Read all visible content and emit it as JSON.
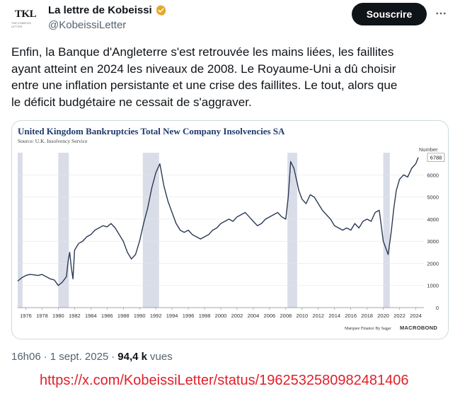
{
  "author": {
    "avatar_text": "TKL",
    "avatar_sub": "THE KOBEISSI LETTER",
    "display_name": "La lettre de Kobeissi",
    "handle": "@KobeissiLetter",
    "verified_icon": "verified-badge-icon",
    "verified_color": "#e2a829"
  },
  "actions": {
    "subscribe_label": "Souscrire",
    "more_icon": "more-options-icon"
  },
  "tweet": {
    "text": "Enfin, la Banque d'Angleterre s'est retrouvée les mains liées, les faillites\nayant atteint en 2024 les niveaux de 2008. Le Royaume-Uni a dû choisir\nentre une inflation persistante et une crise des faillites. Le tout, alors que\nle déficit budgétaire ne cessait de s'aggraver."
  },
  "meta": {
    "time": "16h06",
    "date": "1 sept. 2025",
    "views_count": "94,4 k",
    "views_label": "vues"
  },
  "source_url": "https://x.com/KobeissiLetter/status/1962532580982481406",
  "chart_data": {
    "type": "line",
    "title": "United Kingdom Bankruptcies Total New Company Insolvencies SA",
    "subtitle": "Source: U.K. Insolvency Service",
    "ylabel": "Number",
    "ylim": [
      0,
      7000
    ],
    "xlim": [
      1975,
      2025
    ],
    "y_ticks": [
      0,
      1000,
      2000,
      3000,
      4000,
      5000,
      6000
    ],
    "x_ticks": [
      1976,
      1978,
      1980,
      1982,
      1984,
      1986,
      1988,
      1990,
      1992,
      1994,
      1996,
      1998,
      2000,
      2002,
      2004,
      2006,
      2008,
      2010,
      2012,
      2014,
      2016,
      2018,
      2020,
      2022,
      2024
    ],
    "last_value_label": "6788",
    "recession_bands": [
      [
        1975.0,
        1975.6
      ],
      [
        1980.0,
        1981.3
      ],
      [
        1990.4,
        1992.4
      ],
      [
        2008.2,
        2009.4
      ],
      [
        2020.0,
        2020.8
      ]
    ],
    "footer_credit": "Marquee Finance By Sagar",
    "footer_brand": "MACROBOND",
    "line_color": "#2b3a55",
    "band_color": "#d9dde8",
    "title_color": "#1f3a6e",
    "series": [
      {
        "x": [
          1975.0,
          1975.5,
          1976.0,
          1976.5,
          1977.0,
          1977.5,
          1978.0,
          1978.5,
          1979.0,
          1979.5,
          1980.0,
          1980.5,
          1981.0,
          1981.2,
          1981.4,
          1981.6,
          1981.8,
          1982.0,
          1982.5,
          1983.0,
          1983.5,
          1984.0,
          1984.5,
          1985.0,
          1985.5,
          1986.0,
          1986.5,
          1987.0,
          1987.5,
          1988.0,
          1988.5,
          1989.0,
          1989.5,
          1990.0,
          1990.5,
          1991.0,
          1991.5,
          1992.0,
          1992.5,
          1993.0,
          1993.5,
          1994.0,
          1994.5,
          1995.0,
          1995.5,
          1996.0,
          1996.5,
          1997.0,
          1997.5,
          1998.0,
          1998.5,
          1999.0,
          1999.5,
          2000.0,
          2000.5,
          2001.0,
          2001.5,
          2002.0,
          2002.5,
          2003.0,
          2003.5,
          2004.0,
          2004.5,
          2005.0,
          2005.5,
          2006.0,
          2006.5,
          2007.0,
          2007.5,
          2008.0,
          2008.3,
          2008.6,
          2009.0,
          2009.3,
          2009.6,
          2010.0,
          2010.5,
          2011.0,
          2011.5,
          2012.0,
          2012.5,
          2013.0,
          2013.5,
          2014.0,
          2014.5,
          2015.0,
          2015.5,
          2016.0,
          2016.5,
          2017.0,
          2017.5,
          2018.0,
          2018.5,
          2019.0,
          2019.5,
          2020.0,
          2020.3,
          2020.6,
          2021.0,
          2021.3,
          2021.6,
          2022.0,
          2022.5,
          2023.0,
          2023.5,
          2024.0,
          2024.3
        ],
        "y": [
          1200,
          1350,
          1450,
          1500,
          1480,
          1450,
          1500,
          1400,
          1300,
          1250,
          1000,
          1150,
          1400,
          2100,
          2500,
          1800,
          1300,
          2600,
          2900,
          3000,
          3200,
          3300,
          3500,
          3600,
          3700,
          3650,
          3800,
          3600,
          3300,
          3000,
          2500,
          2200,
          2400,
          3000,
          3800,
          4500,
          5400,
          6100,
          6500,
          5500,
          4800,
          4300,
          3800,
          3500,
          3400,
          3500,
          3300,
          3200,
          3100,
          3200,
          3300,
          3500,
          3600,
          3800,
          3900,
          4000,
          3900,
          4100,
          4200,
          4300,
          4100,
          3900,
          3700,
          3800,
          4000,
          4100,
          4200,
          4300,
          4100,
          4000,
          5000,
          6600,
          6300,
          5800,
          5300,
          4900,
          4700,
          5100,
          5000,
          4700,
          4400,
          4200,
          4000,
          3700,
          3600,
          3500,
          3600,
          3500,
          3800,
          3600,
          3900,
          4000,
          3900,
          4300,
          4400,
          3000,
          2700,
          2400,
          3500,
          4500,
          5300,
          5800,
          6000,
          5900,
          6300,
          6500,
          6788
        ]
      }
    ]
  }
}
